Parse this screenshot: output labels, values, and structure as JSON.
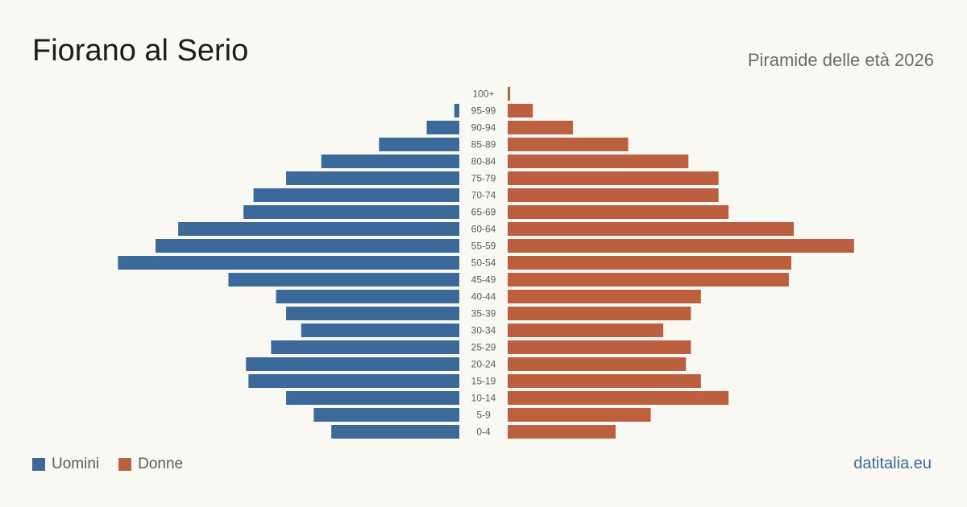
{
  "header": {
    "title": "Fiorano al Serio",
    "subtitle": "Piramide delle età 2026"
  },
  "legend": {
    "men_label": "Uomini",
    "women_label": "Donne"
  },
  "footer": {
    "source": "datitalia.eu"
  },
  "colors": {
    "men": "#3b6a9a",
    "women": "#bb5f3e",
    "background": "#faf8f3",
    "label": "#5b5b5b"
  },
  "chart_data": {
    "type": "bar",
    "orientation": "horizontal",
    "layout": "population-pyramid",
    "categories": [
      "100+",
      "95-99",
      "90-94",
      "85-89",
      "80-84",
      "75-79",
      "70-74",
      "65-69",
      "60-64",
      "55-59",
      "50-54",
      "45-49",
      "40-44",
      "35-39",
      "30-34",
      "25-29",
      "20-24",
      "15-19",
      "10-14",
      "5-9",
      "0-4"
    ],
    "series": [
      {
        "name": "Uomini",
        "side": "left",
        "values": [
          0,
          2,
          13,
          32,
          55,
          69,
          82,
          86,
          112,
          121,
          136,
          92,
          73,
          69,
          63,
          75,
          85,
          84,
          69,
          58,
          51
        ]
      },
      {
        "name": "Donne",
        "side": "right",
        "values": [
          1,
          10,
          26,
          48,
          72,
          84,
          84,
          88,
          114,
          138,
          113,
          112,
          77,
          73,
          62,
          73,
          71,
          77,
          88,
          57,
          43
        ]
      }
    ],
    "title": "",
    "xlabel": "",
    "ylabel": "",
    "grid": false,
    "legend_position": "bottom-left"
  }
}
